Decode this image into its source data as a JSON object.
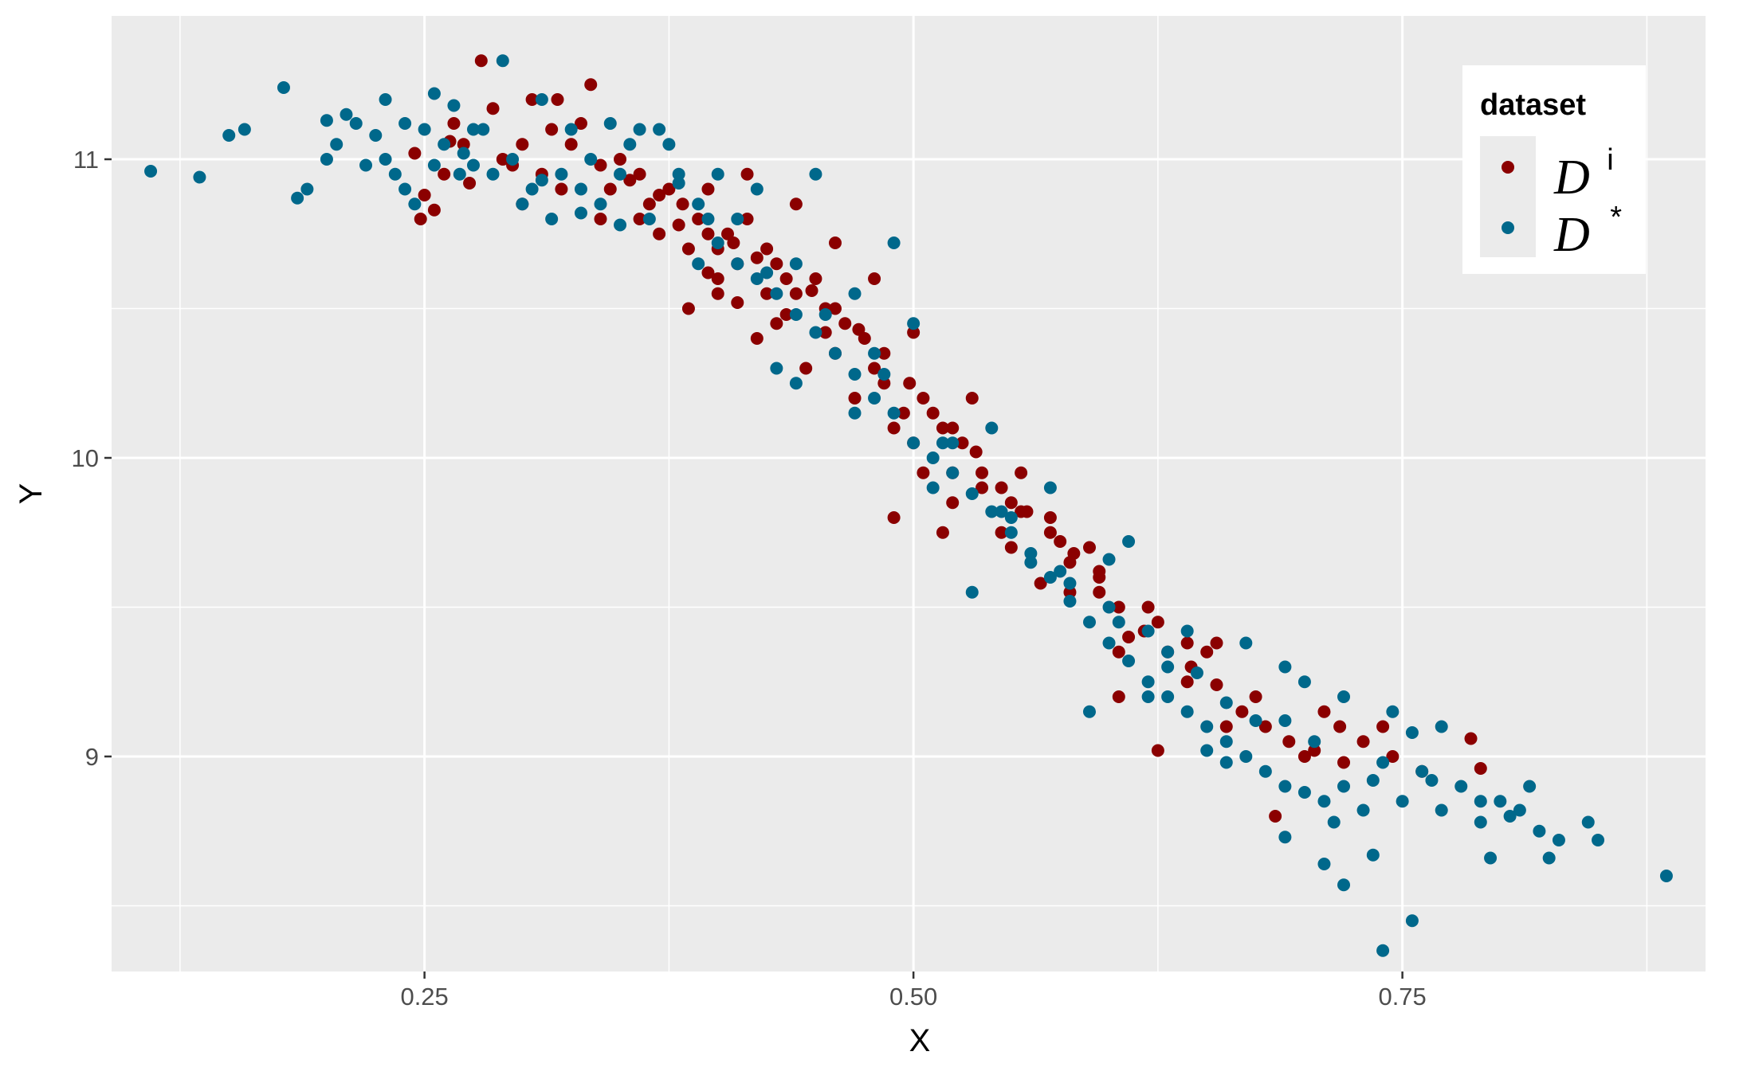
{
  "chart_data": {
    "type": "scatter",
    "title": "",
    "xlabel": "X",
    "ylabel": "Y",
    "xlim": [
      0.09,
      0.905
    ],
    "ylim": [
      8.28,
      11.48
    ],
    "x_ticks": [
      0.25,
      0.5,
      0.75
    ],
    "x_tick_labels": [
      "0.25",
      "0.50",
      "0.75"
    ],
    "y_ticks": [
      9,
      10,
      11
    ],
    "y_tick_labels": [
      "9",
      "10",
      "11"
    ],
    "grid": true,
    "legend": {
      "title": "dataset",
      "position": "top-right",
      "entries": [
        {
          "base": "D",
          "sup": "i"
        },
        {
          "base": "D",
          "sup": "*"
        }
      ]
    },
    "colors": {
      "D_i": "#8b0000",
      "D_star": "#00688b"
    },
    "series": [
      {
        "name": "D^i",
        "points": [
          [
            0.279,
            11.33
          ],
          [
            0.318,
            11.2
          ],
          [
            0.335,
            11.25
          ],
          [
            0.265,
            11.12
          ],
          [
            0.305,
            11.2
          ],
          [
            0.285,
            11.17
          ],
          [
            0.245,
            11.02
          ],
          [
            0.263,
            11.06
          ],
          [
            0.273,
            10.92
          ],
          [
            0.25,
            10.88
          ],
          [
            0.255,
            10.83
          ],
          [
            0.248,
            10.8
          ],
          [
            0.295,
            10.98
          ],
          [
            0.31,
            10.95
          ],
          [
            0.325,
            11.05
          ],
          [
            0.34,
            10.98
          ],
          [
            0.355,
            10.93
          ],
          [
            0.37,
            10.88
          ],
          [
            0.36,
            10.8
          ],
          [
            0.382,
            10.85
          ],
          [
            0.395,
            10.75
          ],
          [
            0.408,
            10.72
          ],
          [
            0.42,
            10.67
          ],
          [
            0.435,
            10.6
          ],
          [
            0.448,
            10.56
          ],
          [
            0.46,
            10.5
          ],
          [
            0.472,
            10.43
          ],
          [
            0.485,
            10.35
          ],
          [
            0.498,
            10.25
          ],
          [
            0.51,
            10.15
          ],
          [
            0.52,
            10.1
          ],
          [
            0.532,
            10.02
          ],
          [
            0.545,
            9.9
          ],
          [
            0.558,
            9.82
          ],
          [
            0.57,
            9.75
          ],
          [
            0.582,
            9.68
          ],
          [
            0.595,
            9.6
          ],
          [
            0.605,
            9.5
          ],
          [
            0.618,
            9.42
          ],
          [
            0.63,
            9.35
          ],
          [
            0.642,
            9.3
          ],
          [
            0.655,
            9.24
          ],
          [
            0.668,
            9.15
          ],
          [
            0.68,
            9.1
          ],
          [
            0.692,
            9.05
          ],
          [
            0.705,
            9.02
          ],
          [
            0.718,
            9.1
          ],
          [
            0.73,
            9.05
          ],
          [
            0.745,
            9.0
          ],
          [
            0.76,
            8.95
          ],
          [
            0.785,
            9.06
          ],
          [
            0.79,
            8.96
          ],
          [
            0.685,
            8.8
          ],
          [
            0.605,
            9.2
          ],
          [
            0.625,
            9.02
          ],
          [
            0.515,
            9.75
          ],
          [
            0.49,
            9.8
          ],
          [
            0.42,
            10.4
          ],
          [
            0.4,
            10.6
          ],
          [
            0.385,
            10.5
          ],
          [
            0.555,
            9.82
          ],
          [
            0.625,
            9.45
          ],
          [
            0.605,
            9.35
          ],
          [
            0.595,
            9.55
          ],
          [
            0.595,
            9.62
          ],
          [
            0.58,
            9.65
          ],
          [
            0.57,
            9.8
          ],
          [
            0.55,
            9.85
          ],
          [
            0.545,
            9.75
          ],
          [
            0.535,
            9.95
          ],
          [
            0.525,
            10.05
          ],
          [
            0.515,
            10.1
          ],
          [
            0.505,
            10.2
          ],
          [
            0.5,
            10.05
          ],
          [
            0.495,
            10.15
          ],
          [
            0.485,
            10.25
          ],
          [
            0.48,
            10.3
          ],
          [
            0.475,
            10.4
          ],
          [
            0.465,
            10.45
          ],
          [
            0.455,
            10.5
          ],
          [
            0.45,
            10.6
          ],
          [
            0.44,
            10.55
          ],
          [
            0.43,
            10.65
          ],
          [
            0.425,
            10.7
          ],
          [
            0.415,
            10.8
          ],
          [
            0.41,
            10.65
          ],
          [
            0.405,
            10.75
          ],
          [
            0.4,
            10.7
          ],
          [
            0.39,
            10.8
          ],
          [
            0.375,
            10.9
          ],
          [
            0.365,
            10.85
          ],
          [
            0.35,
            11.0
          ],
          [
            0.345,
            10.9
          ],
          [
            0.33,
            11.12
          ],
          [
            0.315,
            11.1
          ],
          [
            0.3,
            11.05
          ],
          [
            0.29,
            11.0
          ],
          [
            0.27,
            11.05
          ],
          [
            0.26,
            10.95
          ],
          [
            0.3,
            10.85
          ],
          [
            0.32,
            10.9
          ],
          [
            0.34,
            10.8
          ],
          [
            0.36,
            10.95
          ],
          [
            0.38,
            10.78
          ],
          [
            0.4,
            10.55
          ],
          [
            0.43,
            10.45
          ],
          [
            0.46,
            10.35
          ],
          [
            0.49,
            10.1
          ],
          [
            0.52,
            9.95
          ],
          [
            0.55,
            9.7
          ],
          [
            0.58,
            9.55
          ],
          [
            0.61,
            9.4
          ],
          [
            0.64,
            9.25
          ],
          [
            0.66,
            9.1
          ],
          [
            0.7,
            9.0
          ],
          [
            0.72,
            8.98
          ],
          [
            0.74,
            9.1
          ],
          [
            0.655,
            9.38
          ],
          [
            0.64,
            9.38
          ],
          [
            0.575,
            9.72
          ],
          [
            0.565,
            9.58
          ],
          [
            0.535,
            9.9
          ],
          [
            0.52,
            9.85
          ],
          [
            0.505,
            9.95
          ],
          [
            0.47,
            10.2
          ],
          [
            0.445,
            10.3
          ],
          [
            0.455,
            10.42
          ],
          [
            0.435,
            10.48
          ],
          [
            0.425,
            10.55
          ],
          [
            0.41,
            10.52
          ],
          [
            0.395,
            10.62
          ],
          [
            0.385,
            10.7
          ],
          [
            0.37,
            10.75
          ],
          [
            0.395,
            10.9
          ],
          [
            0.415,
            10.95
          ],
          [
            0.44,
            10.85
          ],
          [
            0.46,
            10.72
          ],
          [
            0.48,
            10.6
          ],
          [
            0.5,
            10.42
          ],
          [
            0.53,
            10.2
          ],
          [
            0.555,
            9.95
          ],
          [
            0.59,
            9.7
          ],
          [
            0.62,
            9.5
          ],
          [
            0.65,
            9.35
          ],
          [
            0.675,
            9.2
          ],
          [
            0.71,
            9.15
          ]
        ]
      },
      {
        "name": "D^*",
        "points": [
          [
            0.11,
            10.96
          ],
          [
            0.135,
            10.94
          ],
          [
            0.15,
            11.08
          ],
          [
            0.158,
            11.1
          ],
          [
            0.178,
            11.24
          ],
          [
            0.185,
            10.87
          ],
          [
            0.19,
            10.9
          ],
          [
            0.2,
            11.0
          ],
          [
            0.205,
            11.05
          ],
          [
            0.21,
            11.15
          ],
          [
            0.215,
            11.12
          ],
          [
            0.22,
            10.98
          ],
          [
            0.225,
            11.08
          ],
          [
            0.23,
            11.2
          ],
          [
            0.235,
            10.95
          ],
          [
            0.24,
            11.12
          ],
          [
            0.245,
            10.85
          ],
          [
            0.255,
            11.22
          ],
          [
            0.26,
            11.05
          ],
          [
            0.268,
            10.95
          ],
          [
            0.275,
            10.98
          ],
          [
            0.28,
            11.1
          ],
          [
            0.285,
            10.95
          ],
          [
            0.29,
            11.33
          ],
          [
            0.295,
            11.0
          ],
          [
            0.3,
            10.85
          ],
          [
            0.305,
            10.9
          ],
          [
            0.31,
            11.2
          ],
          [
            0.315,
            10.8
          ],
          [
            0.32,
            10.95
          ],
          [
            0.325,
            11.1
          ],
          [
            0.33,
            10.9
          ],
          [
            0.335,
            11.0
          ],
          [
            0.34,
            10.85
          ],
          [
            0.345,
            11.12
          ],
          [
            0.35,
            10.78
          ],
          [
            0.36,
            11.1
          ],
          [
            0.365,
            10.8
          ],
          [
            0.375,
            11.05
          ],
          [
            0.38,
            10.95
          ],
          [
            0.39,
            10.85
          ],
          [
            0.4,
            10.72
          ],
          [
            0.41,
            10.65
          ],
          [
            0.42,
            10.6
          ],
          [
            0.43,
            10.55
          ],
          [
            0.44,
            10.48
          ],
          [
            0.45,
            10.42
          ],
          [
            0.46,
            10.35
          ],
          [
            0.47,
            10.28
          ],
          [
            0.48,
            10.2
          ],
          [
            0.49,
            10.15
          ],
          [
            0.5,
            10.05
          ],
          [
            0.51,
            10.0
          ],
          [
            0.52,
            9.95
          ],
          [
            0.53,
            9.88
          ],
          [
            0.54,
            9.82
          ],
          [
            0.55,
            9.75
          ],
          [
            0.56,
            9.68
          ],
          [
            0.57,
            9.6
          ],
          [
            0.58,
            9.52
          ],
          [
            0.59,
            9.45
          ],
          [
            0.6,
            9.38
          ],
          [
            0.61,
            9.32
          ],
          [
            0.62,
            9.25
          ],
          [
            0.63,
            9.2
          ],
          [
            0.64,
            9.15
          ],
          [
            0.65,
            9.1
          ],
          [
            0.66,
            9.05
          ],
          [
            0.67,
            9.0
          ],
          [
            0.68,
            8.95
          ],
          [
            0.69,
            8.9
          ],
          [
            0.7,
            8.88
          ],
          [
            0.71,
            8.85
          ],
          [
            0.72,
            8.9
          ],
          [
            0.73,
            8.82
          ],
          [
            0.74,
            8.98
          ],
          [
            0.75,
            8.85
          ],
          [
            0.76,
            8.95
          ],
          [
            0.77,
            8.82
          ],
          [
            0.78,
            8.9
          ],
          [
            0.79,
            8.78
          ],
          [
            0.8,
            8.85
          ],
          [
            0.81,
            8.82
          ],
          [
            0.82,
            8.75
          ],
          [
            0.83,
            8.72
          ],
          [
            0.845,
            8.78
          ],
          [
            0.85,
            8.72
          ],
          [
            0.885,
            8.6
          ],
          [
            0.755,
            8.45
          ],
          [
            0.74,
            8.35
          ],
          [
            0.72,
            8.57
          ],
          [
            0.71,
            8.64
          ],
          [
            0.735,
            8.67
          ],
          [
            0.795,
            8.66
          ],
          [
            0.825,
            8.66
          ],
          [
            0.69,
            8.73
          ],
          [
            0.715,
            8.78
          ],
          [
            0.65,
            9.02
          ],
          [
            0.66,
            8.98
          ],
          [
            0.62,
            9.42
          ],
          [
            0.58,
            9.58
          ],
          [
            0.55,
            9.8
          ],
          [
            0.52,
            10.05
          ],
          [
            0.48,
            10.35
          ],
          [
            0.44,
            10.65
          ],
          [
            0.41,
            10.8
          ],
          [
            0.38,
            10.92
          ],
          [
            0.35,
            10.95
          ],
          [
            0.33,
            10.82
          ],
          [
            0.31,
            10.93
          ],
          [
            0.45,
            10.95
          ],
          [
            0.49,
            10.72
          ],
          [
            0.6,
            9.66
          ],
          [
            0.61,
            9.72
          ],
          [
            0.59,
            9.15
          ],
          [
            0.53,
            9.55
          ],
          [
            0.62,
            9.2
          ],
          [
            0.67,
            9.38
          ],
          [
            0.69,
            9.3
          ],
          [
            0.7,
            9.25
          ],
          [
            0.72,
            9.2
          ],
          [
            0.745,
            9.15
          ],
          [
            0.77,
            9.1
          ],
          [
            0.755,
            9.08
          ],
          [
            0.64,
            9.42
          ],
          [
            0.63,
            9.3
          ],
          [
            0.57,
            9.9
          ],
          [
            0.54,
            10.1
          ],
          [
            0.5,
            10.45
          ],
          [
            0.47,
            10.55
          ],
          [
            0.43,
            10.3
          ],
          [
            0.42,
            10.9
          ],
          [
            0.4,
            10.95
          ],
          [
            0.37,
            11.1
          ],
          [
            0.355,
            11.05
          ],
          [
            0.39,
            10.65
          ],
          [
            0.44,
            10.25
          ],
          [
            0.47,
            10.15
          ],
          [
            0.51,
            9.9
          ],
          [
            0.56,
            9.65
          ],
          [
            0.6,
            9.5
          ],
          [
            0.645,
            9.28
          ],
          [
            0.675,
            9.12
          ],
          [
            0.705,
            9.05
          ],
          [
            0.735,
            8.92
          ],
          [
            0.765,
            8.92
          ],
          [
            0.79,
            8.85
          ],
          [
            0.805,
            8.8
          ],
          [
            0.815,
            8.9
          ],
          [
            0.69,
            9.12
          ],
          [
            0.66,
            9.18
          ],
          [
            0.63,
            9.35
          ],
          [
            0.605,
            9.45
          ],
          [
            0.575,
            9.62
          ],
          [
            0.545,
            9.82
          ],
          [
            0.515,
            10.05
          ],
          [
            0.485,
            10.28
          ],
          [
            0.455,
            10.48
          ],
          [
            0.425,
            10.62
          ],
          [
            0.395,
            10.8
          ],
          [
            0.265,
            11.18
          ],
          [
            0.275,
            11.1
          ],
          [
            0.2,
            11.13
          ],
          [
            0.23,
            11.0
          ],
          [
            0.24,
            10.9
          ],
          [
            0.25,
            11.1
          ],
          [
            0.255,
            10.98
          ],
          [
            0.27,
            11.02
          ]
        ]
      }
    ]
  }
}
